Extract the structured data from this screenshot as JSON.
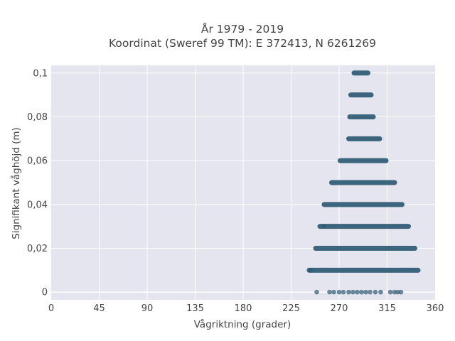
{
  "chart_data": {
    "type": "scatter",
    "title": "År 1979 - 2019",
    "subtitle": "Koordinat (Sweref 99 TM): E 372413, N 6261269",
    "xlabel": "Vågriktning (grader)",
    "ylabel": "Signifikant våghöjd (m)",
    "xlim": [
      0,
      360
    ],
    "ylim": [
      -0.0035,
      0.1035
    ],
    "x_ticks": [
      0,
      45,
      90,
      135,
      180,
      225,
      270,
      315,
      360
    ],
    "x_tick_labels": [
      "0",
      "45",
      "90",
      "135",
      "180",
      "225",
      "270",
      "315",
      "360"
    ],
    "y_ticks": [
      0,
      0.02,
      0.04,
      0.06,
      0.08,
      0.1
    ],
    "y_tick_labels": [
      "0",
      "0,02",
      "0,04",
      "0,06",
      "0,08",
      "0,1"
    ],
    "grid": true,
    "legend": "none",
    "marker_color": "#2e5a73",
    "background_color": "#e5e5f0",
    "bands": [
      {
        "y": 0.1,
        "x_min": 284,
        "x_max": 297
      },
      {
        "y": 0.09,
        "x_min": 281,
        "x_max": 300
      },
      {
        "y": 0.08,
        "x_min": 280,
        "x_max": 302
      },
      {
        "y": 0.07,
        "x_min": 279,
        "x_max": 308
      },
      {
        "y": 0.06,
        "x_min": 271,
        "x_max": 314
      },
      {
        "y": 0.05,
        "x_min": 263,
        "x_max": 322
      },
      {
        "y": 0.04,
        "x_min": 256,
        "x_max": 329
      },
      {
        "y": 0.03,
        "x_min": 252,
        "x_max": 335
      },
      {
        "y": 0.02,
        "x_min": 248,
        "x_max": 341
      },
      {
        "y": 0.01,
        "x_min": 242,
        "x_max": 344
      }
    ],
    "points": [
      {
        "x": 256,
        "y": 0.03
      },
      {
        "x": 243,
        "y": 0.01
      },
      {
        "x": 249,
        "y": 0
      },
      {
        "x": 261,
        "y": 0
      },
      {
        "x": 265,
        "y": 0
      },
      {
        "x": 270,
        "y": 0
      },
      {
        "x": 274,
        "y": 0
      },
      {
        "x": 279,
        "y": 0
      },
      {
        "x": 283,
        "y": 0
      },
      {
        "x": 287,
        "y": 0
      },
      {
        "x": 291,
        "y": 0
      },
      {
        "x": 295,
        "y": 0
      },
      {
        "x": 299,
        "y": 0
      },
      {
        "x": 304,
        "y": 0
      },
      {
        "x": 309,
        "y": 0
      },
      {
        "x": 318,
        "y": 0
      },
      {
        "x": 322,
        "y": 0
      },
      {
        "x": 325,
        "y": 0
      },
      {
        "x": 328,
        "y": 0
      }
    ]
  }
}
